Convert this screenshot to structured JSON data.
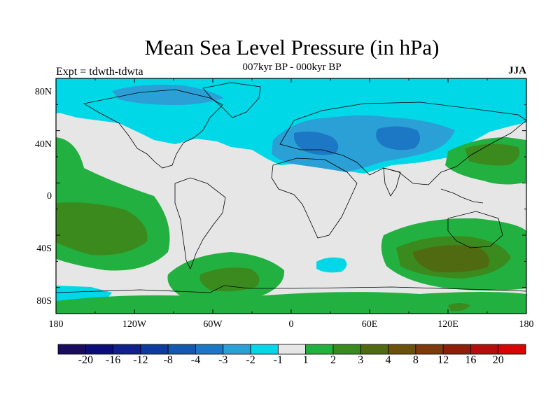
{
  "title": "Mean Sea Level Pressure (in hPa)",
  "subtitle": "007kyr BP - 000kyr BP",
  "left_label": "Expt = tdwth-tdwta",
  "right_label": "JJA",
  "y_ticks": [
    "80N",
    "40N",
    "0",
    "40S",
    "80S"
  ],
  "x_ticks": [
    "180",
    "120W",
    "60W",
    "0",
    "60E",
    "120E",
    "180"
  ],
  "colorbar": {
    "colors": [
      "#1a0d5e",
      "#0d0d7a",
      "#12208c",
      "#0f3a9e",
      "#1458b0",
      "#1c78c4",
      "#2aa0d6",
      "#00d8e8",
      "#e6e6e6",
      "#22b040",
      "#3a8a1e",
      "#4f6a10",
      "#6a520d",
      "#7e3a0d",
      "#8e1e0a",
      "#b40e0e",
      "#d40606"
    ],
    "labels": [
      "-20",
      "-16",
      "-12",
      "-8",
      "-4",
      "-3",
      "-2",
      "-1",
      "1",
      "2",
      "3",
      "4",
      "8",
      "12",
      "16",
      "20"
    ]
  },
  "fill_colors": {
    "neutral": "#e6e6e6",
    "neg1": "#00d8e8",
    "neg2": "#2aa0d6",
    "neg3": "#1c78c4",
    "pos1": "#22b040",
    "pos2": "#3a8a1e",
    "pos3": "#4f6a10",
    "pos4": "#6a520d"
  }
}
